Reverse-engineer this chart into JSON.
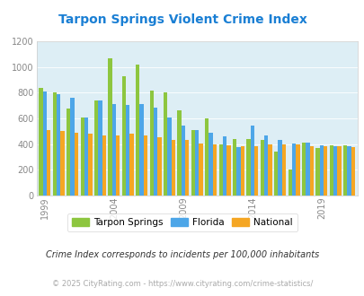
{
  "title": "Tarpon Springs Violent Crime Index",
  "years": [
    1999,
    2000,
    2001,
    2002,
    2003,
    2004,
    2005,
    2006,
    2007,
    2008,
    2009,
    2010,
    2011,
    2012,
    2013,
    2014,
    2015,
    2016,
    2017,
    2018,
    2019,
    2020,
    2021
  ],
  "tarpon_springs": [
    840,
    800,
    680,
    610,
    740,
    1070,
    930,
    1020,
    815,
    805,
    660,
    510,
    600,
    400,
    440,
    440,
    430,
    340,
    200,
    410,
    370,
    390,
    390
  ],
  "florida": [
    810,
    790,
    760,
    610,
    740,
    710,
    705,
    710,
    685,
    610,
    545,
    510,
    490,
    460,
    375,
    545,
    465,
    430,
    405,
    410,
    390,
    385,
    380
  ],
  "national": [
    510,
    500,
    490,
    480,
    470,
    465,
    480,
    465,
    455,
    435,
    430,
    405,
    395,
    390,
    385,
    380,
    395,
    400,
    395,
    385,
    380,
    380,
    375
  ],
  "tarpon_color": "#8dc63f",
  "florida_color": "#4da6e8",
  "national_color": "#f5a623",
  "fig_bg_color": "#ffffff",
  "plot_bg": "#ddeef5",
  "ylim": [
    0,
    1200
  ],
  "yticks": [
    0,
    200,
    400,
    600,
    800,
    1000,
    1200
  ],
  "xtick_years": [
    1999,
    2004,
    2009,
    2014,
    2019
  ],
  "legend_labels": [
    "Tarpon Springs",
    "Florida",
    "National"
  ],
  "footnote1": "Crime Index corresponds to incidents per 100,000 inhabitants",
  "footnote2": "© 2025 CityRating.com - https://www.cityrating.com/crime-statistics/",
  "title_color": "#1a7fd4",
  "footnote1_color": "#333333",
  "footnote2_color": "#aaaaaa",
  "bar_width": 0.28,
  "tick_label_color": "#888888",
  "axis_color": "#cccccc"
}
